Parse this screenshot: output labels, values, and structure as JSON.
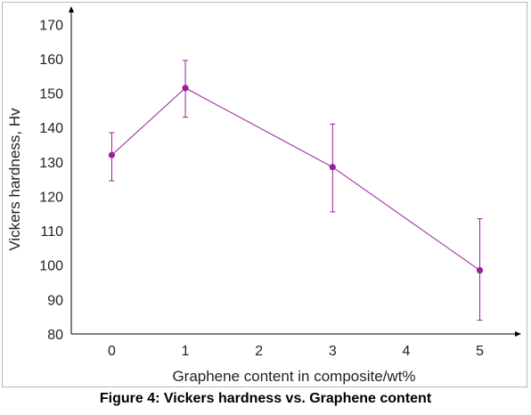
{
  "caption": "Figure 4: Vickers hardness vs. Graphene content",
  "chart_data": {
    "type": "line",
    "xlabel": "Graphene content in composite/wt%",
    "ylabel": "Vickers hardness, Hv",
    "x_ticks": [
      0,
      1,
      2,
      3,
      4,
      5
    ],
    "y_ticks": [
      80,
      90,
      100,
      110,
      120,
      130,
      140,
      150,
      160,
      170
    ],
    "xlim": [
      -0.55,
      5.55
    ],
    "ylim": [
      80,
      175
    ],
    "grid": false,
    "legend": "none",
    "series": [
      {
        "color": "#9b1f9b",
        "points": [
          {
            "x": 0,
            "y": 132,
            "err_low": 124.5,
            "err_high": 138.5
          },
          {
            "x": 1,
            "y": 151.5,
            "err_low": 143,
            "err_high": 159.5
          },
          {
            "x": 3,
            "y": 128.5,
            "err_low": 115.5,
            "err_high": 141
          },
          {
            "x": 5,
            "y": 98.5,
            "err_low": 84,
            "err_high": 113.5
          }
        ]
      }
    ]
  }
}
